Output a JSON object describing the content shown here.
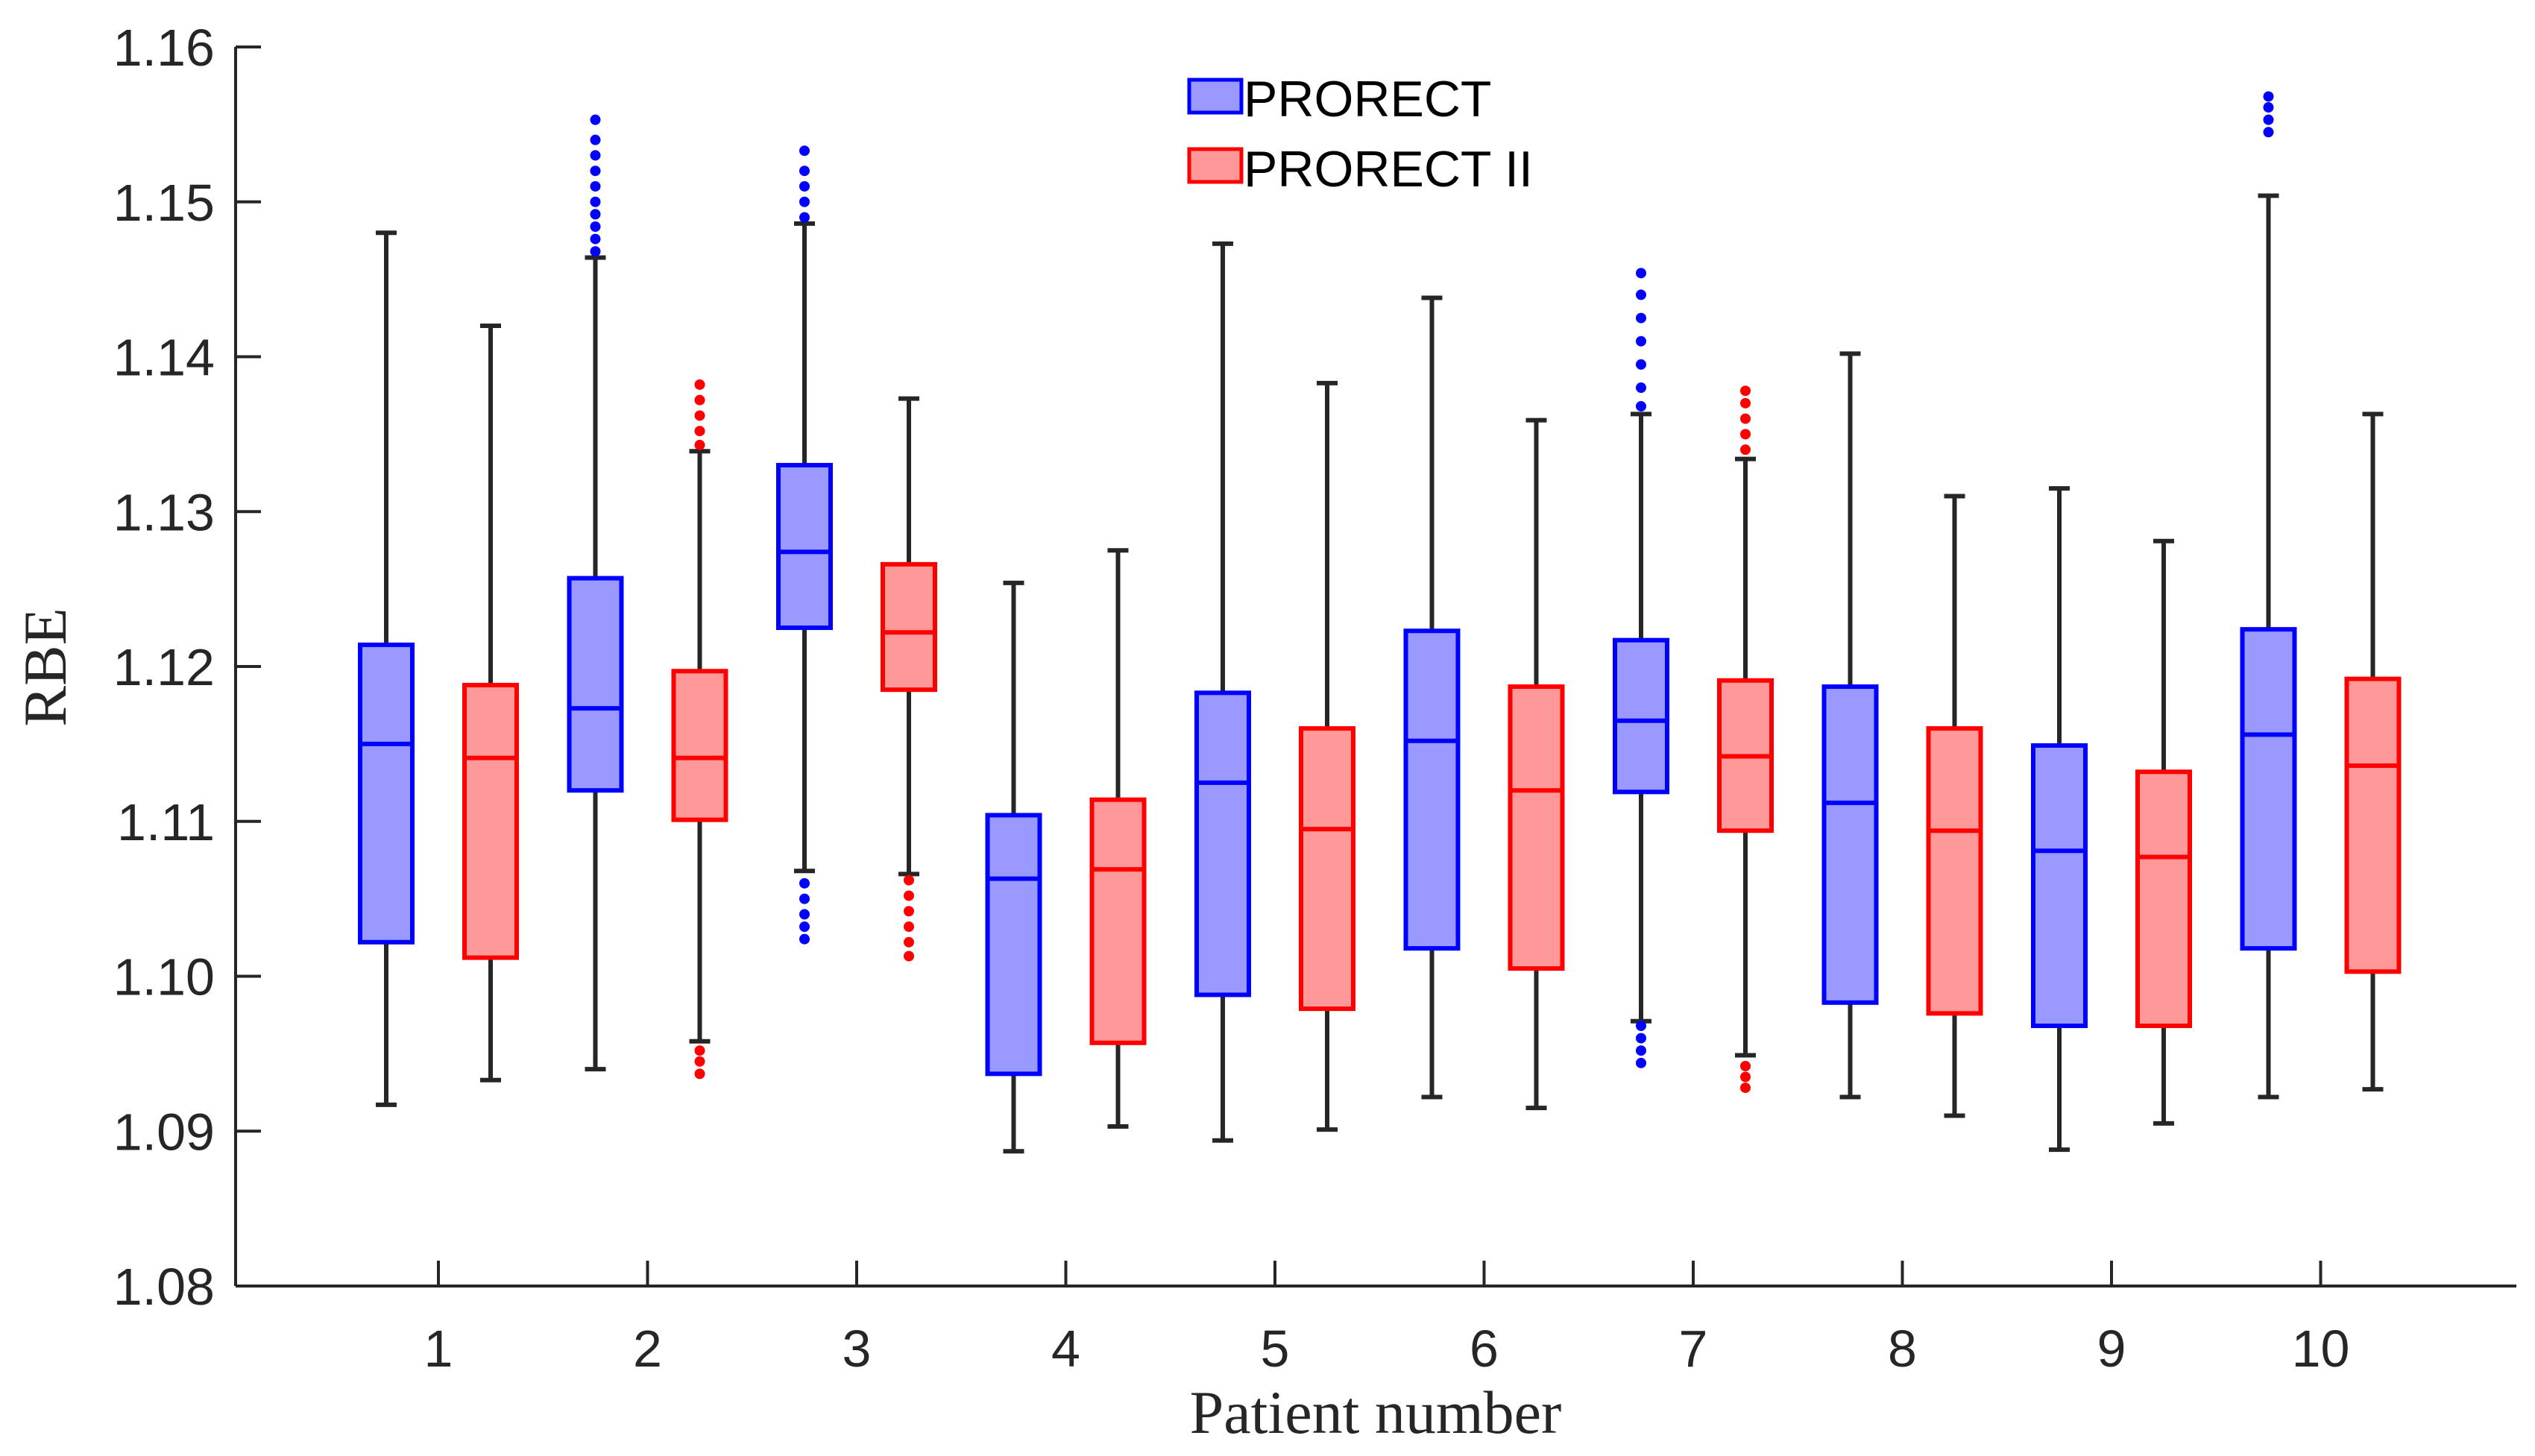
{
  "chart_data": {
    "type": "boxplot",
    "xlabel": "Patient number",
    "ylabel": "RBE",
    "ylim": [
      1.08,
      1.16
    ],
    "yticks": [
      1.08,
      1.09,
      1.1,
      1.11,
      1.12,
      1.13,
      1.14,
      1.15,
      1.16
    ],
    "ytick_labels": [
      "1.08",
      "1.09",
      "1.10",
      "1.11",
      "1.12",
      "1.13",
      "1.14",
      "1.15",
      "1.16"
    ],
    "categories": [
      "1",
      "2",
      "3",
      "4",
      "5",
      "6",
      "7",
      "8",
      "9",
      "10"
    ],
    "legend_position": "top-center",
    "series": [
      {
        "name": "PRORECT",
        "color": "#0000ff",
        "fill": "#9999ff",
        "boxes": [
          {
            "min": 1.0917,
            "q1": 1.1022,
            "median": 1.115,
            "q3": 1.1214,
            "max": 1.148,
            "outliers": []
          },
          {
            "min": 1.094,
            "q1": 1.112,
            "median": 1.1173,
            "q3": 1.1257,
            "max": 1.1464,
            "outliers": [
              1.1468,
              1.1476,
              1.1484,
              1.1492,
              1.15,
              1.151,
              1.152,
              1.153,
              1.154,
              1.1553
            ]
          },
          {
            "min": 1.1068,
            "q1": 1.1225,
            "median": 1.1274,
            "q3": 1.133,
            "max": 1.1486,
            "outliers": [
              1.1024,
              1.1032,
              1.104,
              1.105,
              1.106,
              1.149,
              1.15,
              1.151,
              1.152,
              1.1533
            ]
          },
          {
            "min": 1.0887,
            "q1": 1.0937,
            "median": 1.1063,
            "q3": 1.1104,
            "max": 1.1254,
            "outliers": []
          },
          {
            "min": 1.0894,
            "q1": 1.0988,
            "median": 1.1125,
            "q3": 1.1183,
            "max": 1.1473,
            "outliers": []
          },
          {
            "min": 1.0922,
            "q1": 1.1018,
            "median": 1.1152,
            "q3": 1.1223,
            "max": 1.1438,
            "outliers": []
          },
          {
            "min": 1.0971,
            "q1": 1.1119,
            "median": 1.1165,
            "q3": 1.1217,
            "max": 1.1363,
            "outliers": [
              1.0944,
              1.0952,
              1.096,
              1.0968,
              1.1368,
              1.138,
              1.1395,
              1.141,
              1.1425,
              1.144,
              1.1454
            ]
          },
          {
            "min": 1.0922,
            "q1": 1.0983,
            "median": 1.1112,
            "q3": 1.1187,
            "max": 1.1402,
            "outliers": []
          },
          {
            "min": 1.0888,
            "q1": 1.0968,
            "median": 1.1081,
            "q3": 1.1149,
            "max": 1.1315,
            "outliers": []
          },
          {
            "min": 1.0922,
            "q1": 1.1018,
            "median": 1.1156,
            "q3": 1.1224,
            "max": 1.1504,
            "outliers": [
              1.1545,
              1.1553,
              1.1561,
              1.1568
            ]
          }
        ]
      },
      {
        "name": "PRORECT II",
        "color": "#ff0000",
        "fill": "#ff9999",
        "boxes": [
          {
            "min": 1.0933,
            "q1": 1.1012,
            "median": 1.1141,
            "q3": 1.1188,
            "max": 1.142,
            "outliers": []
          },
          {
            "min": 1.0958,
            "q1": 1.1101,
            "median": 1.1141,
            "q3": 1.1197,
            "max": 1.1339,
            "outliers": [
              1.0937,
              1.0945,
              1.0952,
              1.1343,
              1.1352,
              1.1362,
              1.1372,
              1.1382
            ]
          },
          {
            "min": 1.1066,
            "q1": 1.1185,
            "median": 1.1222,
            "q3": 1.1266,
            "max": 1.1373,
            "outliers": [
              1.1013,
              1.1022,
              1.1032,
              1.1042,
              1.1052,
              1.1062
            ]
          },
          {
            "min": 1.0903,
            "q1": 1.0957,
            "median": 1.1069,
            "q3": 1.1114,
            "max": 1.1275,
            "outliers": []
          },
          {
            "min": 1.0901,
            "q1": 1.0979,
            "median": 1.1095,
            "q3": 1.116,
            "max": 1.1383,
            "outliers": []
          },
          {
            "min": 1.0915,
            "q1": 1.1005,
            "median": 1.112,
            "q3": 1.1187,
            "max": 1.1359,
            "outliers": []
          },
          {
            "min": 1.0949,
            "q1": 1.1094,
            "median": 1.1142,
            "q3": 1.1191,
            "max": 1.1334,
            "outliers": [
              1.0928,
              1.0935,
              1.0942,
              1.134,
              1.135,
              1.136,
              1.137,
              1.1378
            ]
          },
          {
            "min": 1.091,
            "q1": 1.0976,
            "median": 1.1094,
            "q3": 1.116,
            "max": 1.131,
            "outliers": []
          },
          {
            "min": 1.0905,
            "q1": 1.0968,
            "median": 1.1077,
            "q3": 1.1132,
            "max": 1.1281,
            "outliers": []
          },
          {
            "min": 1.0927,
            "q1": 1.1003,
            "median": 1.1136,
            "q3": 1.1192,
            "max": 1.1363,
            "outliers": []
          }
        ]
      }
    ]
  }
}
